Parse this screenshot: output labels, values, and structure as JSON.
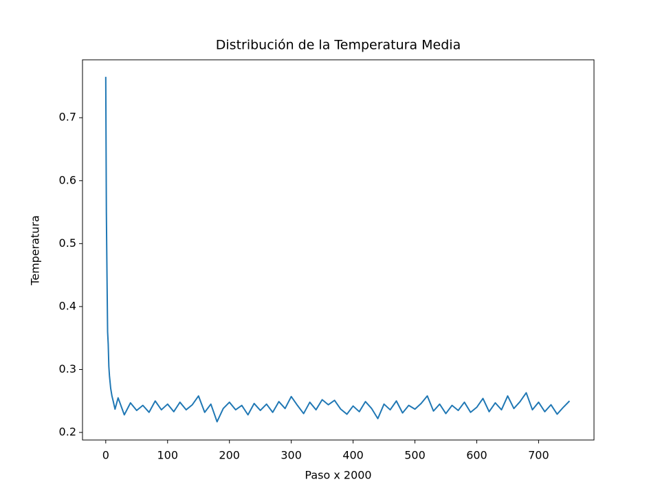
{
  "chart_data": {
    "type": "line",
    "title": "Distribución de la Temperatura Media",
    "x_label": "Paso x 2000",
    "y_label": "Temperatura",
    "x": [
      0,
      1,
      2,
      3,
      4,
      5,
      6,
      8,
      10,
      12,
      15,
      20,
      30,
      40,
      50,
      60,
      70,
      80,
      90,
      100,
      110,
      120,
      130,
      140,
      150,
      160,
      170,
      180,
      190,
      200,
      210,
      220,
      230,
      240,
      250,
      260,
      270,
      280,
      290,
      300,
      310,
      320,
      330,
      340,
      350,
      360,
      370,
      380,
      390,
      400,
      410,
      420,
      430,
      440,
      450,
      460,
      470,
      480,
      490,
      500,
      510,
      520,
      530,
      540,
      550,
      560,
      570,
      580,
      590,
      600,
      610,
      620,
      630,
      640,
      650,
      660,
      670,
      680,
      690,
      700,
      710,
      720,
      730,
      740,
      750
    ],
    "series": [
      {
        "color": "#1f77b4",
        "values": [
          0.765,
          0.55,
          0.45,
          0.36,
          0.34,
          0.305,
          0.29,
          0.27,
          0.258,
          0.25,
          0.237,
          0.255,
          0.228,
          0.247,
          0.235,
          0.243,
          0.232,
          0.25,
          0.236,
          0.245,
          0.233,
          0.248,
          0.236,
          0.244,
          0.258,
          0.232,
          0.245,
          0.217,
          0.238,
          0.248,
          0.236,
          0.243,
          0.228,
          0.246,
          0.235,
          0.245,
          0.232,
          0.249,
          0.238,
          0.257,
          0.243,
          0.23,
          0.248,
          0.236,
          0.252,
          0.244,
          0.251,
          0.237,
          0.229,
          0.242,
          0.233,
          0.249,
          0.238,
          0.222,
          0.245,
          0.236,
          0.25,
          0.231,
          0.243,
          0.237,
          0.246,
          0.258,
          0.234,
          0.245,
          0.23,
          0.243,
          0.235,
          0.248,
          0.232,
          0.24,
          0.254,
          0.233,
          0.247,
          0.236,
          0.258,
          0.238,
          0.249,
          0.263,
          0.236,
          0.248,
          0.233,
          0.244,
          0.229,
          0.24,
          0.25
        ]
      }
    ],
    "xlim": [
      -37.6,
      789.6
    ],
    "ylim": [
      0.188,
      0.792
    ],
    "xticks": [
      0,
      100,
      200,
      300,
      400,
      500,
      600,
      700
    ],
    "yticks": [
      0.2,
      0.3,
      0.4,
      0.5,
      0.6,
      0.7
    ]
  }
}
